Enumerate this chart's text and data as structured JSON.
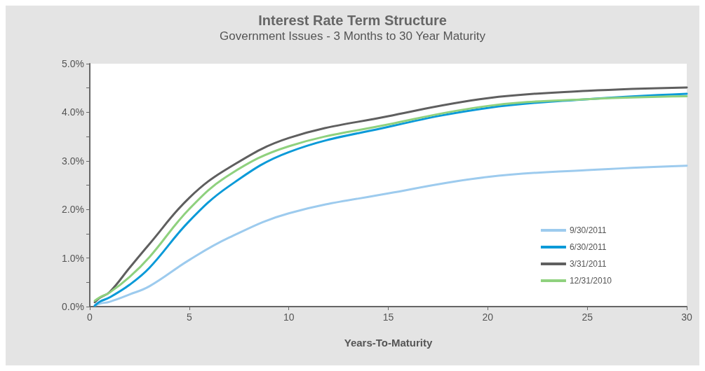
{
  "chart_data": {
    "type": "line",
    "title": "Interest Rate Term Structure",
    "subtitle": "Government Issues - 3 Months to 30 Year Maturity",
    "xlabel": "Years-To-Maturity",
    "x": [
      0.25,
      0.5,
      1,
      2,
      3,
      5,
      7,
      10,
      15,
      20,
      25,
      30
    ],
    "series": [
      {
        "name": "9/30/2011",
        "color": "#9dcbee",
        "values": [
          0.02,
          0.06,
          0.1,
          0.25,
          0.42,
          0.96,
          1.42,
          1.92,
          2.33,
          2.67,
          2.81,
          2.9
        ]
      },
      {
        "name": "6/30/2011",
        "color": "#0b9ad8",
        "values": [
          0.02,
          0.1,
          0.19,
          0.45,
          0.8,
          1.76,
          2.48,
          3.18,
          3.7,
          4.09,
          4.27,
          4.38
        ]
      },
      {
        "name": "3/31/2011",
        "color": "#5f5f5f",
        "values": [
          0.09,
          0.18,
          0.3,
          0.8,
          1.29,
          2.24,
          2.86,
          3.47,
          3.92,
          4.29,
          4.44,
          4.51
        ]
      },
      {
        "name": "12/31/2010",
        "color": "#8fd17e",
        "values": [
          0.12,
          0.19,
          0.29,
          0.61,
          1.02,
          2.01,
          2.71,
          3.3,
          3.75,
          4.13,
          4.27,
          4.33
        ]
      }
    ],
    "xlim": [
      0,
      30
    ],
    "xticks": [
      0,
      5,
      10,
      15,
      20,
      25,
      30
    ],
    "ylim": [
      0,
      5
    ],
    "yticks": [
      {
        "value": 0,
        "label": "0.0%"
      },
      {
        "value": 0.5,
        "label": null
      },
      {
        "value": 1,
        "label": "1.0%"
      },
      {
        "value": 1.5,
        "label": null
      },
      {
        "value": 2,
        "label": "2.0%"
      },
      {
        "value": 2.5,
        "label": null
      },
      {
        "value": 3,
        "label": "3.0%"
      },
      {
        "value": 3.5,
        "label": null
      },
      {
        "value": 4,
        "label": "4.0%"
      },
      {
        "value": 4.5,
        "label": null
      },
      {
        "value": 5,
        "label": "5.0%"
      }
    ],
    "grid": false,
    "legend": "bottom right",
    "marker": "none",
    "line_style": "solid"
  }
}
